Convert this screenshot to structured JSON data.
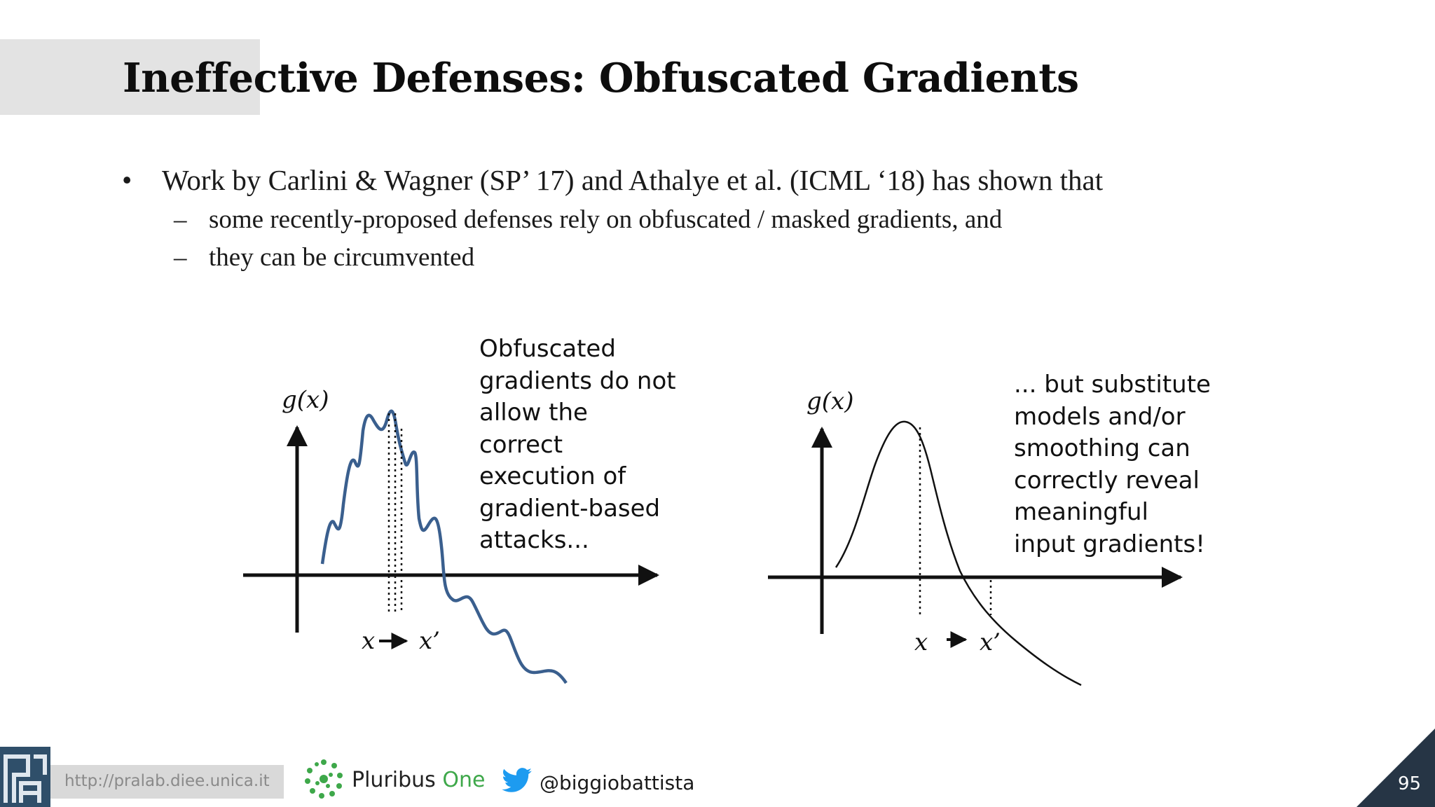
{
  "slide": {
    "title": "Ineffective Defenses: Obfuscated Gradients",
    "page_number": "95"
  },
  "bullets": {
    "main_mark": "•",
    "main_text": "Work by Carlini & Wagner (SP’ 17) and Athalye et al. (ICML ‘18) has shown that",
    "sub_mark": "–",
    "sub_items": [
      "some recently-proposed defenses rely on obfuscated / masked gradients, and",
      "they can be circumvented"
    ]
  },
  "left_panel": {
    "y_label": "g(x)",
    "x_label": "x",
    "x_prime_label": "x’",
    "caption_lines": [
      "Obfuscated",
      "gradients do not",
      "allow the",
      "correct",
      "execution of",
      "gradient-based",
      "attacks..."
    ],
    "curve_color": "#3a5f8e"
  },
  "right_panel": {
    "y_label": "g(x)",
    "x_label": "x",
    "x_prime_label": "x’",
    "caption_lines": [
      "... but substitute",
      "models and/or",
      "smoothing can",
      "correctly reveal",
      "meaningful",
      "input gradients!"
    ],
    "curve_color": "#111111"
  },
  "footer": {
    "url": "http://pralab.diee.unica.it",
    "brand_main": "Pluribus ",
    "brand_accent": "One",
    "twitter_handle": "@biggiobattista",
    "brand_accent_color": "#3ea84a",
    "twitter_color": "#1d9bf0",
    "corner_color": "#263545"
  }
}
